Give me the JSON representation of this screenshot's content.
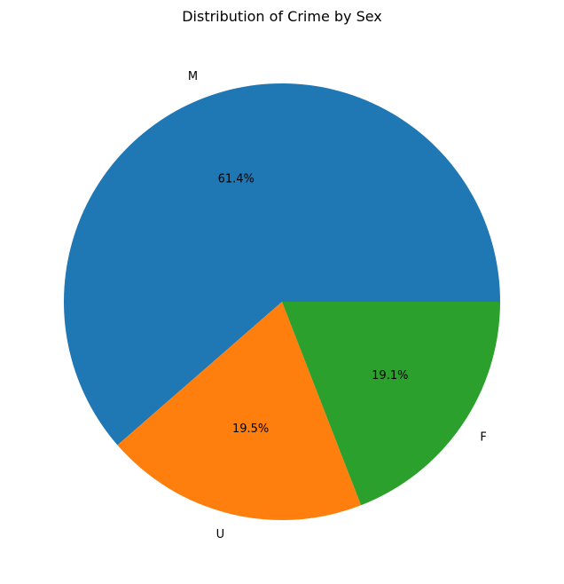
{
  "chart_data": {
    "type": "pie",
    "title": "Distribution of Crime by Sex",
    "slices": [
      {
        "label": "M",
        "value": 61.4,
        "value_label": "61.4%",
        "color": "#1f77b4"
      },
      {
        "label": "U",
        "value": 19.5,
        "value_label": "19.5%",
        "color": "#ff7f0e"
      },
      {
        "label": "F",
        "value": 19.1,
        "value_label": "19.1%",
        "color": "#2ca02c"
      }
    ],
    "start_angle": "3 o'clock",
    "direction": "counterclockwise",
    "legend": "none",
    "grid": false
  }
}
